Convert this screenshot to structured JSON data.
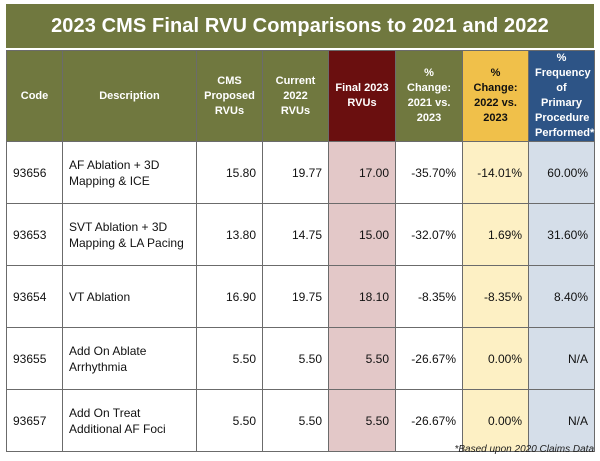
{
  "title": "2023 CMS Final RVU Comparisons to 2021 and 2022",
  "headers": {
    "code": "Code",
    "description": "Description",
    "cms_proposed": "CMS Proposed RVUs",
    "current_2022": "Current 2022 RVUs",
    "final_2023": "Final 2023 RVUs",
    "chg_2021": "% Change: 2021 vs. 2023",
    "chg_2022": "% Change: 2022 vs. 2023",
    "frequency": "% Frequency of Primary Procedure Performed*"
  },
  "rows": [
    {
      "code": "93656",
      "description": "AF Ablation + 3D Mapping & ICE",
      "cms_proposed": "15.80",
      "current_2022": "19.77",
      "final_2023": "17.00",
      "chg_2021": "-35.70%",
      "chg_2022": "-14.01%",
      "frequency": "60.00%"
    },
    {
      "code": "93653",
      "description": "SVT Ablation + 3D Mapping & LA Pacing",
      "cms_proposed": "13.80",
      "current_2022": "14.75",
      "final_2023": "15.00",
      "chg_2021": "-32.07%",
      "chg_2022": "1.69%",
      "frequency": "31.60%"
    },
    {
      "code": "93654",
      "description": "VT Ablation",
      "cms_proposed": "16.90",
      "current_2022": "19.75",
      "final_2023": "18.10",
      "chg_2021": "-8.35%",
      "chg_2022": "-8.35%",
      "frequency": "8.40%"
    },
    {
      "code": "93655",
      "description": "Add On Ablate Arrhythmia",
      "cms_proposed": "5.50",
      "current_2022": "5.50",
      "final_2023": "5.50",
      "chg_2021": "-26.67%",
      "chg_2022": "0.00%",
      "frequency": "N/A"
    },
    {
      "code": "93657",
      "description": "Add On Treat Additional AF Foci",
      "cms_proposed": "5.50",
      "current_2022": "5.50",
      "final_2023": "5.50",
      "chg_2021": "-26.67%",
      "chg_2022": "0.00%",
      "frequency": "N/A"
    }
  ],
  "footnote": "*Based upon 2020 Claims Data",
  "colors": {
    "olive_header": "#70783f",
    "final_header": "#6a0f0f",
    "change_header": "#f0c04a",
    "frequency_header": "#2d5486"
  }
}
